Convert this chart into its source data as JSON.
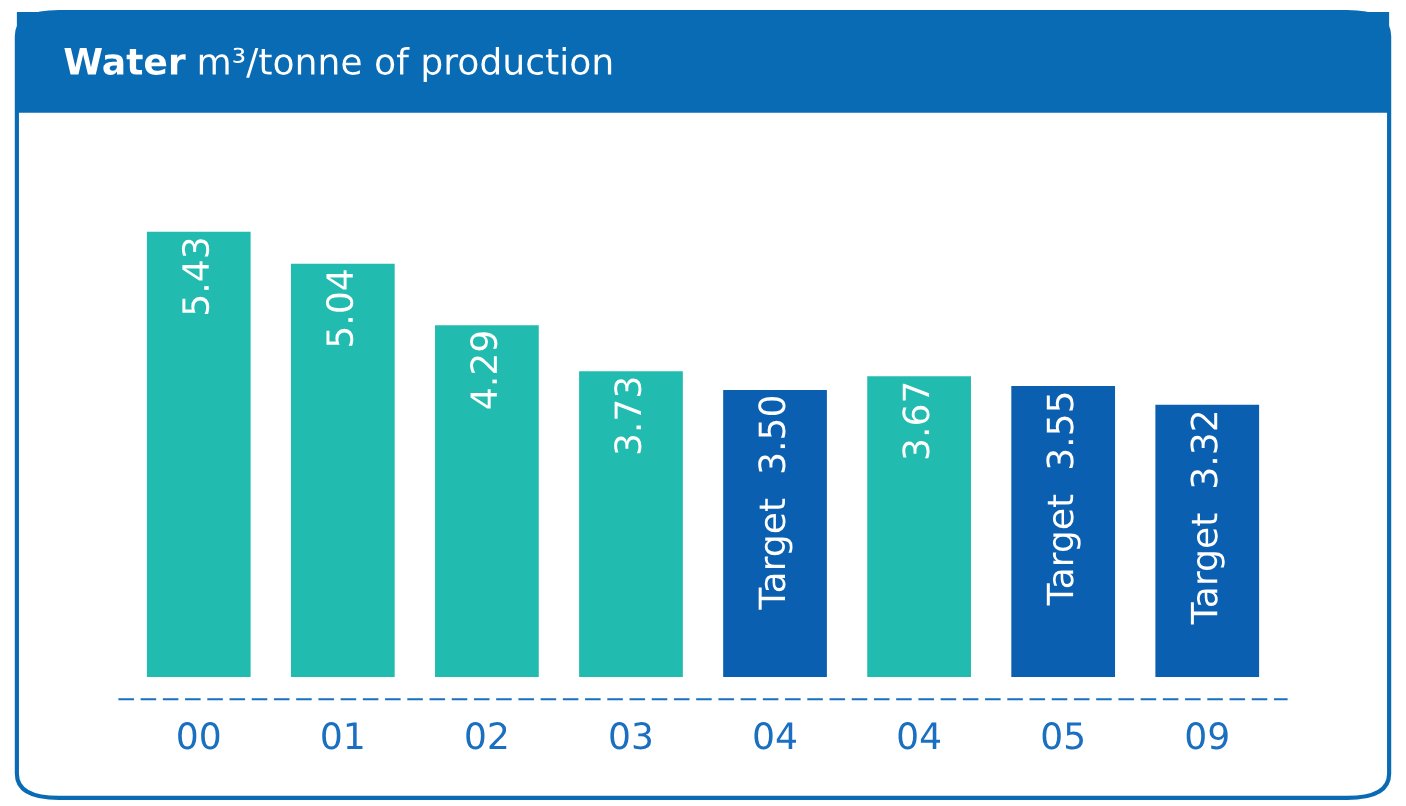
{
  "chart_data": {
    "type": "bar",
    "title": "Water m³/tonne of production",
    "categories": [
      "00",
      "01",
      "02",
      "03",
      "04",
      "04",
      "05",
      "09"
    ],
    "values": [
      5.43,
      5.04,
      4.29,
      3.73,
      3.5,
      3.67,
      3.55,
      3.32
    ],
    "colors": [
      "#22bbb0",
      "#22bbb0",
      "#22bbb0",
      "#22bbb0",
      "#0a5fb0",
      "#22bbb0",
      "#0a5fb0",
      "#0a5fb0"
    ],
    "value_labels": [
      "5.43",
      "5.04",
      "4.29",
      "3.73",
      "Target  3.50",
      "3.67",
      "Target  3.55",
      "Target  3.32"
    ]
  }
}
